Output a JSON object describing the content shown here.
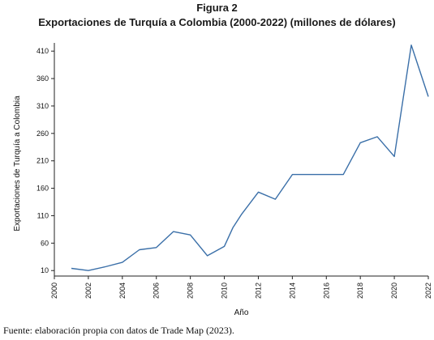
{
  "figure": {
    "label": "Figura 2",
    "title": "Exportaciones de Turquía a Colombia (2000-2022) (millones de dólares)",
    "source": "Fuente: elaboración propia con datos de Trade Map (2023)."
  },
  "chart_data": {
    "type": "line",
    "title": "Exportaciones de Turquía a Colombia (2000-2022) (millones de dólares)",
    "xlabel": "Año",
    "ylabel": "Exportaciones de Turquía a Colombia",
    "xlim": [
      2000,
      2022
    ],
    "ylim": [
      0,
      425
    ],
    "x_ticks": [
      "2000",
      "2002",
      "2004",
      "2006",
      "2008",
      "2010",
      "2012",
      "2014",
      "2016",
      "2018",
      "2020",
      "2022"
    ],
    "y_ticks": [
      "10",
      "60",
      "110",
      "160",
      "210",
      "260",
      "310",
      "360",
      "410"
    ],
    "grid": false,
    "legend": "none",
    "line_color": "#3a6fa8",
    "series": [
      {
        "x": [
          2001,
          2002,
          2003,
          2004,
          2005,
          2006,
          2007,
          2008,
          2009,
          2010,
          2010.5,
          2011,
          2012,
          2013,
          2014,
          2015,
          2016,
          2017,
          2018,
          2019,
          2020,
          2021,
          2022
        ],
        "values": [
          14,
          10,
          17,
          25,
          48,
          52,
          81,
          75,
          37,
          54,
          88,
          112,
          153,
          140,
          185,
          185,
          185,
          185,
          243,
          254,
          218,
          421,
          327
        ]
      }
    ]
  }
}
